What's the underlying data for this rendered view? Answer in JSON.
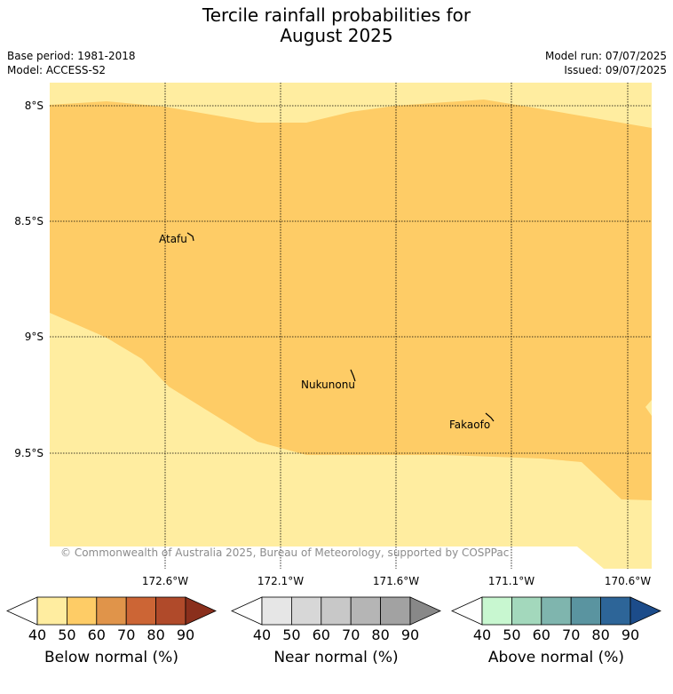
{
  "title": {
    "line1": "Tercile rainfall probabilities for",
    "line2": "August 2025"
  },
  "meta": {
    "base_period": "Base period: 1981-2018",
    "model": "Model: ACCESS-S2",
    "model_run": "Model run: 07/07/2025",
    "issued": "Issued: 09/07/2025"
  },
  "map": {
    "lat_labels": [
      "8°S",
      "8.5°S",
      "9°S",
      "9.5°S"
    ],
    "lon_labels": [
      "172.6°W",
      "172.1°W",
      "171.6°W",
      "171.1°W",
      "170.6°W"
    ],
    "places": [
      "Atafu",
      "Nukunonu",
      "Fakaofo"
    ],
    "copyright": "© Commonwealth of Australia 2025, Bureau of Meteorology, supported by COSPPac",
    "regions": [
      {
        "category": "Below normal",
        "probability_bin": "40-50",
        "color": "#ffeda0"
      },
      {
        "category": "Below normal",
        "probability_bin": "50-60",
        "color": "#fecc66"
      }
    ]
  },
  "legends": [
    {
      "label": "Below normal (%)",
      "ticks": [
        "40",
        "50",
        "60",
        "70",
        "80",
        "90"
      ],
      "colors": [
        "#ffffff",
        "#ffeda0",
        "#fecc66",
        "#e0944a",
        "#cc6535",
        "#b04a2a",
        "#8a2f1c"
      ]
    },
    {
      "label": "Near normal (%)",
      "ticks": [
        "40",
        "50",
        "60",
        "70",
        "80",
        "90"
      ],
      "colors": [
        "#ffffff",
        "#e6e6e6",
        "#d7d7d7",
        "#c8c8c8",
        "#b5b5b5",
        "#a2a2a2",
        "#888888"
      ]
    },
    {
      "label": "Above normal (%)",
      "ticks": [
        "40",
        "50",
        "60",
        "70",
        "80",
        "90"
      ],
      "colors": [
        "#ffffff",
        "#c8f7d0",
        "#a3d8bc",
        "#7fb5ae",
        "#5a94a0",
        "#2d6598",
        "#1c4c8a"
      ]
    }
  ]
}
